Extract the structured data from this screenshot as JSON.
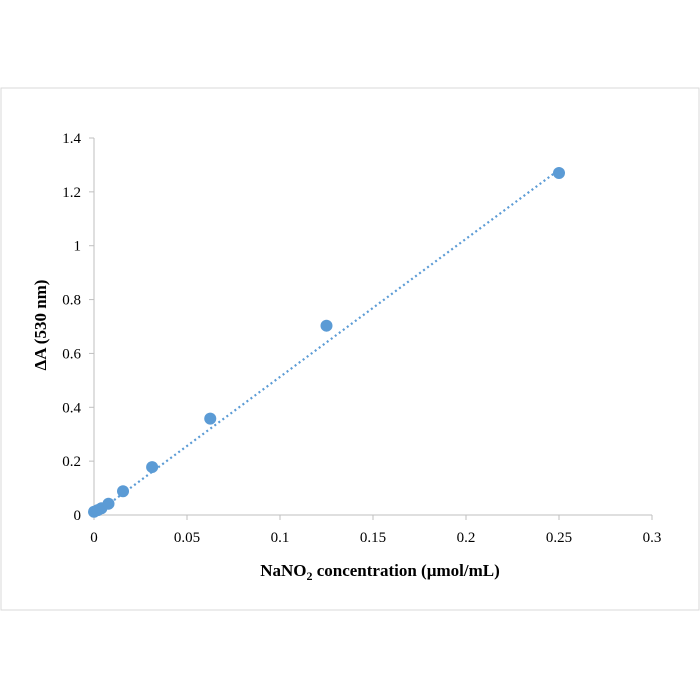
{
  "chart_data": {
    "type": "scatter",
    "xlabel_main": "NaNO",
    "xlabel_sub": "2",
    "xlabel_rest": " concentration (µmol/mL)",
    "ylabel": "ΔA (530 nm)",
    "xlim": [
      0,
      0.3
    ],
    "ylim": [
      0,
      1.4
    ],
    "x_ticks": [
      "0",
      "0.05",
      "0.1",
      "0.15",
      "0.2",
      "0.25",
      "0.3"
    ],
    "y_ticks": [
      "0",
      "0.2",
      "0.4",
      "0.6",
      "0.8",
      "1",
      "1.2",
      "1.4"
    ],
    "x_tick_values": [
      0,
      0.05,
      0.1,
      0.15,
      0.2,
      0.25,
      0.3
    ],
    "y_tick_values": [
      0,
      0.2,
      0.4,
      0.6,
      0.8,
      1.0,
      1.2,
      1.4
    ],
    "points": [
      {
        "x": 0.0,
        "y": 0.012
      },
      {
        "x": 0.002,
        "y": 0.018
      },
      {
        "x": 0.004,
        "y": 0.025
      },
      {
        "x": 0.0078,
        "y": 0.042
      },
      {
        "x": 0.0156,
        "y": 0.088
      },
      {
        "x": 0.03125,
        "y": 0.178
      },
      {
        "x": 0.0625,
        "y": 0.358
      },
      {
        "x": 0.125,
        "y": 0.703
      },
      {
        "x": 0.25,
        "y": 1.27
      }
    ],
    "trendline": {
      "style": "dotted",
      "x": [
        0,
        0.25
      ],
      "y": [
        0.0,
        1.282
      ]
    },
    "grid": false,
    "legend": "none",
    "colors": {
      "marker": "#5B9BD5",
      "trendline": "#5B9BD5",
      "axis": "#BFBFBF",
      "frame": "#D9D9D9"
    }
  }
}
